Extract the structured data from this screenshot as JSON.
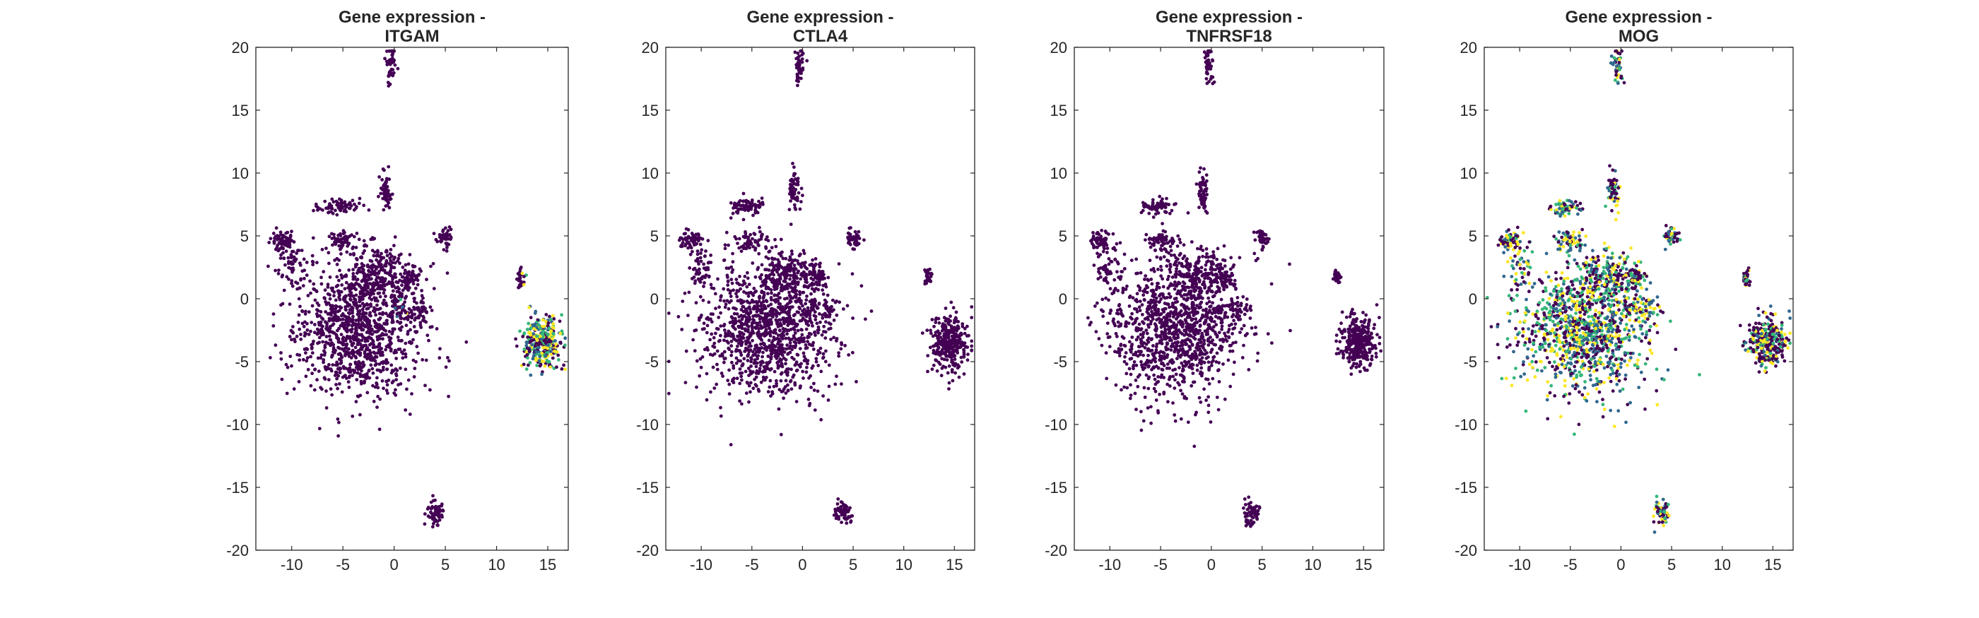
{
  "figure": {
    "colors": {
      "background": "#ffffff",
      "axis": "#262626",
      "colormap": [
        "#440154",
        "#31688e",
        "#35b779",
        "#fde725"
      ]
    }
  },
  "chart_data": [
    {
      "type": "scatter",
      "title": "Gene expression -",
      "subtitle": "ITGAM",
      "xlabel": "",
      "ylabel": "",
      "xlim": [
        -13.5,
        17
      ],
      "ylim": [
        -20,
        20
      ],
      "xticks": [
        -10,
        -5,
        0,
        5,
        10,
        15
      ],
      "yticks": [
        -20,
        -15,
        -10,
        -5,
        0,
        5,
        10,
        15,
        20
      ],
      "grid": false,
      "expression": "low everywhere except the right-side cluster near (14.5, -3.5) and a few cells near (1, -1)",
      "clusters": [
        {
          "x": -3.5,
          "y": -2.5,
          "sx": 3.2,
          "sy": 2.6,
          "n": 1100,
          "mix": 0.0
        },
        {
          "x": -1.5,
          "y": 2.0,
          "sx": 1.6,
          "sy": 1.0,
          "n": 200,
          "mix": 0.0
        },
        {
          "x": 1.5,
          "y": 1.6,
          "sx": 0.6,
          "sy": 0.4,
          "n": 50,
          "mix": 0.0
        },
        {
          "x": 0.8,
          "y": -0.8,
          "sx": 0.3,
          "sy": 0.4,
          "n": 25,
          "mix": 0.35
        },
        {
          "x": -11.0,
          "y": 4.6,
          "sx": 0.6,
          "sy": 0.4,
          "n": 60,
          "mix": 0.0
        },
        {
          "x": -10.0,
          "y": 2.5,
          "sx": 0.7,
          "sy": 1.0,
          "n": 50,
          "mix": 0.0
        },
        {
          "x": -5.5,
          "y": 7.3,
          "sx": 0.9,
          "sy": 0.3,
          "n": 70,
          "mix": 0.0
        },
        {
          "x": -5.0,
          "y": 4.6,
          "sx": 0.8,
          "sy": 0.4,
          "n": 60,
          "mix": 0.0
        },
        {
          "x": -0.8,
          "y": 8.5,
          "sx": 0.3,
          "sy": 0.8,
          "n": 60,
          "mix": 0.0
        },
        {
          "x": -0.3,
          "y": 18.6,
          "sx": 0.25,
          "sy": 0.7,
          "n": 45,
          "mix": 0.0
        },
        {
          "x": 5.0,
          "y": 4.8,
          "sx": 0.35,
          "sy": 0.4,
          "n": 45,
          "mix": 0.0
        },
        {
          "x": 12.4,
          "y": 1.7,
          "sx": 0.2,
          "sy": 0.35,
          "n": 30,
          "mix": 0.1
        },
        {
          "x": 14.5,
          "y": -3.5,
          "sx": 0.9,
          "sy": 1.0,
          "n": 320,
          "mix": 0.65
        },
        {
          "x": 4.0,
          "y": -17.0,
          "sx": 0.4,
          "sy": 0.5,
          "n": 60,
          "mix": 0.0
        },
        {
          "x": 2.5,
          "y": -1.0,
          "sx": 0.6,
          "sy": 0.5,
          "n": 40,
          "mix": 0.0
        }
      ]
    },
    {
      "type": "scatter",
      "title": "Gene expression -",
      "subtitle": "CTLA4",
      "xlabel": "",
      "ylabel": "",
      "xlim": [
        -13.5,
        17
      ],
      "ylim": [
        -20,
        20
      ],
      "xticks": [
        -10,
        -5,
        0,
        5,
        10,
        15
      ],
      "yticks": [
        -20,
        -15,
        -10,
        -5,
        0,
        5,
        10,
        15,
        20
      ],
      "grid": false,
      "expression": "low everywhere",
      "clusters": [
        {
          "x": -3.5,
          "y": -2.5,
          "sx": 3.2,
          "sy": 2.6,
          "n": 1100,
          "mix": 0.0
        },
        {
          "x": -1.5,
          "y": 2.0,
          "sx": 1.6,
          "sy": 1.0,
          "n": 200,
          "mix": 0.0
        },
        {
          "x": 1.5,
          "y": 1.6,
          "sx": 0.6,
          "sy": 0.4,
          "n": 50,
          "mix": 0.0
        },
        {
          "x": 0.8,
          "y": -0.8,
          "sx": 0.3,
          "sy": 0.4,
          "n": 25,
          "mix": 0.0
        },
        {
          "x": -11.0,
          "y": 4.6,
          "sx": 0.6,
          "sy": 0.4,
          "n": 60,
          "mix": 0.0
        },
        {
          "x": -10.0,
          "y": 2.5,
          "sx": 0.7,
          "sy": 1.0,
          "n": 50,
          "mix": 0.0
        },
        {
          "x": -5.5,
          "y": 7.3,
          "sx": 0.9,
          "sy": 0.3,
          "n": 70,
          "mix": 0.0
        },
        {
          "x": -5.0,
          "y": 4.6,
          "sx": 0.8,
          "sy": 0.4,
          "n": 60,
          "mix": 0.0
        },
        {
          "x": -0.8,
          "y": 8.5,
          "sx": 0.3,
          "sy": 0.8,
          "n": 60,
          "mix": 0.0
        },
        {
          "x": -0.3,
          "y": 18.6,
          "sx": 0.25,
          "sy": 0.7,
          "n": 45,
          "mix": 0.0
        },
        {
          "x": 5.0,
          "y": 4.8,
          "sx": 0.35,
          "sy": 0.4,
          "n": 45,
          "mix": 0.0
        },
        {
          "x": 12.4,
          "y": 1.7,
          "sx": 0.2,
          "sy": 0.35,
          "n": 30,
          "mix": 0.0
        },
        {
          "x": 14.5,
          "y": -3.5,
          "sx": 0.9,
          "sy": 1.0,
          "n": 320,
          "mix": 0.0
        },
        {
          "x": 4.0,
          "y": -17.0,
          "sx": 0.4,
          "sy": 0.5,
          "n": 60,
          "mix": 0.0
        },
        {
          "x": 2.5,
          "y": -1.0,
          "sx": 0.6,
          "sy": 0.5,
          "n": 40,
          "mix": 0.0
        }
      ]
    },
    {
      "type": "scatter",
      "title": "Gene expression -",
      "subtitle": "TNFRSF18",
      "xlabel": "",
      "ylabel": "",
      "xlim": [
        -13.5,
        17
      ],
      "ylim": [
        -20,
        20
      ],
      "xticks": [
        -10,
        -5,
        0,
        5,
        10,
        15
      ],
      "yticks": [
        -20,
        -15,
        -10,
        -5,
        0,
        5,
        10,
        15,
        20
      ],
      "grid": false,
      "expression": "low everywhere",
      "clusters": [
        {
          "x": -3.5,
          "y": -2.5,
          "sx": 3.2,
          "sy": 2.6,
          "n": 1100,
          "mix": 0.0
        },
        {
          "x": -1.5,
          "y": 2.0,
          "sx": 1.6,
          "sy": 1.0,
          "n": 200,
          "mix": 0.0
        },
        {
          "x": 1.5,
          "y": 1.6,
          "sx": 0.6,
          "sy": 0.4,
          "n": 50,
          "mix": 0.0
        },
        {
          "x": 0.8,
          "y": -0.8,
          "sx": 0.3,
          "sy": 0.4,
          "n": 25,
          "mix": 0.0
        },
        {
          "x": -11.0,
          "y": 4.6,
          "sx": 0.6,
          "sy": 0.4,
          "n": 60,
          "mix": 0.0
        },
        {
          "x": -10.0,
          "y": 2.5,
          "sx": 0.7,
          "sy": 1.0,
          "n": 50,
          "mix": 0.0
        },
        {
          "x": -5.5,
          "y": 7.3,
          "sx": 0.9,
          "sy": 0.3,
          "n": 70,
          "mix": 0.0
        },
        {
          "x": -5.0,
          "y": 4.6,
          "sx": 0.8,
          "sy": 0.4,
          "n": 60,
          "mix": 0.0
        },
        {
          "x": -0.8,
          "y": 8.5,
          "sx": 0.3,
          "sy": 0.8,
          "n": 60,
          "mix": 0.0
        },
        {
          "x": -0.3,
          "y": 18.6,
          "sx": 0.25,
          "sy": 0.7,
          "n": 45,
          "mix": 0.0
        },
        {
          "x": 5.0,
          "y": 4.8,
          "sx": 0.35,
          "sy": 0.4,
          "n": 45,
          "mix": 0.0
        },
        {
          "x": 12.4,
          "y": 1.7,
          "sx": 0.2,
          "sy": 0.35,
          "n": 30,
          "mix": 0.0
        },
        {
          "x": 14.5,
          "y": -3.5,
          "sx": 0.9,
          "sy": 1.0,
          "n": 320,
          "mix": 0.0
        },
        {
          "x": 4.0,
          "y": -17.0,
          "sx": 0.4,
          "sy": 0.5,
          "n": 60,
          "mix": 0.0
        },
        {
          "x": 2.5,
          "y": -1.0,
          "sx": 0.6,
          "sy": 0.5,
          "n": 40,
          "mix": 0.0
        }
      ]
    },
    {
      "type": "scatter",
      "title": "Gene expression -",
      "subtitle": "MOG",
      "xlabel": "",
      "ylabel": "",
      "xlim": [
        -13.5,
        17
      ],
      "ylim": [
        -20,
        20
      ],
      "xticks": [
        -10,
        -5,
        0,
        5,
        10,
        15
      ],
      "yticks": [
        -20,
        -15,
        -10,
        -5,
        0,
        5,
        10,
        15,
        20
      ],
      "grid": false,
      "expression": "mixed expression across most clusters",
      "clusters": [
        {
          "x": -3.5,
          "y": -2.5,
          "sx": 3.2,
          "sy": 2.6,
          "n": 1100,
          "mix": 0.7
        },
        {
          "x": -1.5,
          "y": 2.0,
          "sx": 1.6,
          "sy": 1.0,
          "n": 200,
          "mix": 0.6
        },
        {
          "x": 1.5,
          "y": 1.6,
          "sx": 0.6,
          "sy": 0.4,
          "n": 50,
          "mix": 0.4
        },
        {
          "x": 0.8,
          "y": -0.8,
          "sx": 0.3,
          "sy": 0.4,
          "n": 25,
          "mix": 0.4
        },
        {
          "x": -11.0,
          "y": 4.6,
          "sx": 0.6,
          "sy": 0.4,
          "n": 60,
          "mix": 0.6
        },
        {
          "x": -10.0,
          "y": 2.5,
          "sx": 0.7,
          "sy": 1.0,
          "n": 50,
          "mix": 0.6
        },
        {
          "x": -5.5,
          "y": 7.3,
          "sx": 0.9,
          "sy": 0.3,
          "n": 70,
          "mix": 0.7
        },
        {
          "x": -5.0,
          "y": 4.6,
          "sx": 0.8,
          "sy": 0.4,
          "n": 60,
          "mix": 0.7
        },
        {
          "x": -0.8,
          "y": 8.5,
          "sx": 0.3,
          "sy": 0.8,
          "n": 60,
          "mix": 0.5
        },
        {
          "x": -0.3,
          "y": 18.6,
          "sx": 0.25,
          "sy": 0.7,
          "n": 45,
          "mix": 0.5
        },
        {
          "x": 5.0,
          "y": 4.8,
          "sx": 0.35,
          "sy": 0.4,
          "n": 45,
          "mix": 0.5
        },
        {
          "x": 12.4,
          "y": 1.7,
          "sx": 0.2,
          "sy": 0.35,
          "n": 30,
          "mix": 0.4
        },
        {
          "x": 14.5,
          "y": -3.5,
          "sx": 0.9,
          "sy": 1.0,
          "n": 320,
          "mix": 0.55
        },
        {
          "x": 4.0,
          "y": -17.0,
          "sx": 0.4,
          "sy": 0.5,
          "n": 60,
          "mix": 0.7
        },
        {
          "x": 2.5,
          "y": -1.0,
          "sx": 0.6,
          "sy": 0.5,
          "n": 40,
          "mix": 0.6
        }
      ]
    }
  ]
}
